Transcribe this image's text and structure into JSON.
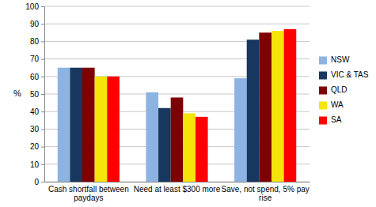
{
  "chart_data": {
    "type": "bar",
    "y_label": "%",
    "categories": [
      "Cash shortfall between paydays",
      "Need at least $300 more",
      "Save, not spend, 5% pay rise"
    ],
    "series": [
      {
        "name": "NSW",
        "color": "#8db3e2",
        "values": [
          65,
          51,
          59
        ]
      },
      {
        "name": "VIC & TAS",
        "color": "#17375e",
        "values": [
          65,
          42,
          81
        ]
      },
      {
        "name": "QLD",
        "color": "#7f0000",
        "values": [
          65,
          48,
          85
        ]
      },
      {
        "name": "WA",
        "color": "#f5e50a",
        "values": [
          60,
          39,
          86
        ]
      },
      {
        "name": "SA",
        "color": "#ff0000",
        "values": [
          60,
          37,
          87
        ]
      }
    ],
    "ylim": [
      0,
      100
    ],
    "yticks": [
      0,
      10,
      20,
      30,
      40,
      50,
      60,
      70,
      80,
      90,
      100
    ],
    "grid": true,
    "legend": "right"
  }
}
